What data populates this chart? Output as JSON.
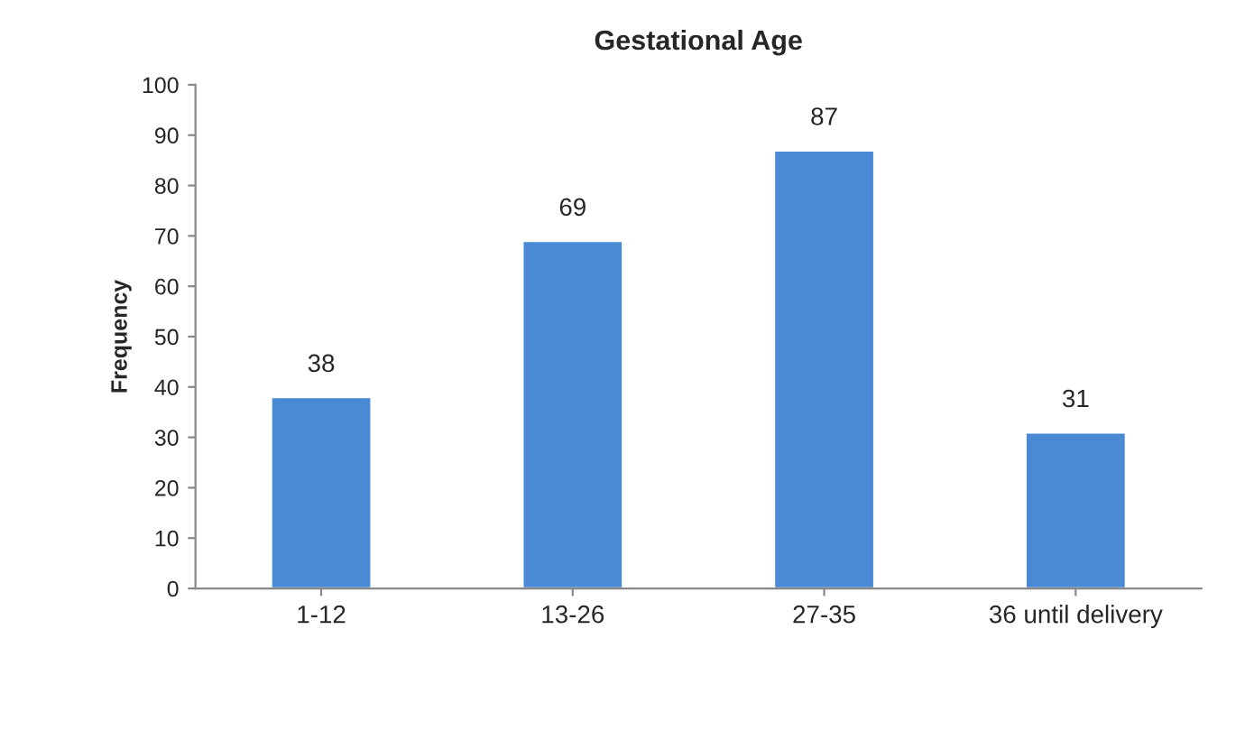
{
  "chart_data": {
    "type": "bar",
    "title": "Gestational Age",
    "ylabel": "Frequency",
    "categories": [
      "1-12",
      "13-26",
      "27-35",
      "36 until delivery"
    ],
    "values": [
      38,
      69,
      87,
      31
    ],
    "color": "#4a8ad4",
    "ylim": [
      0,
      100
    ],
    "yticks": [
      0,
      10,
      20,
      30,
      40,
      50,
      60,
      70,
      80,
      90,
      100
    ],
    "data_labels": true,
    "grid": false,
    "legend": false
  }
}
